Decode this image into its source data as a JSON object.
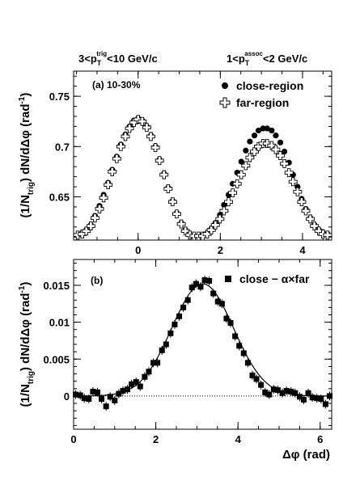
{
  "header": {
    "left": "3<p",
    "left_sub": "T",
    "left_sup": "trig",
    "left_rest": "<10 GeV/c",
    "right": "1<p",
    "right_sub": "T",
    "right_sup": "assoc",
    "right_rest": "<2 GeV/c"
  },
  "chart_data": [
    {
      "type": "scatter",
      "panel_label": "(a)  10-30%",
      "ylabel": "(1/N",
      "ylabel_sub": "trig",
      "ylabel_rest": ") dN/dΔφ (rad",
      "ylabel_sup": "-1",
      "ylabel_close": ")",
      "xlim": [
        -1.57,
        4.71
      ],
      "ylim": [
        0.607,
        0.775
      ],
      "x_ticks": [
        0,
        2,
        4
      ],
      "x_tick_labels": [
        "0",
        "2",
        "4"
      ],
      "y_ticks": [
        0.65,
        0.7,
        0.75
      ],
      "y_tick_labels": [
        "0.65",
        "0.7",
        "0.75"
      ],
      "legend": {
        "placement": "top-right",
        "entries": [
          "close-region",
          "far-region"
        ]
      },
      "series": [
        {
          "name": "close-region",
          "marker": "filled-circle",
          "x": [
            -1.47,
            -1.36,
            -1.26,
            -1.15,
            -1.05,
            -0.94,
            -0.84,
            -0.73,
            -0.63,
            -0.52,
            -0.42,
            -0.31,
            -0.21,
            -0.1,
            0.0,
            0.1,
            0.21,
            0.31,
            0.42,
            0.52,
            0.63,
            0.73,
            0.84,
            0.94,
            1.05,
            1.15,
            1.26,
            1.36,
            1.47,
            1.57,
            1.68,
            1.78,
            1.88,
            1.99,
            2.09,
            2.2,
            2.3,
            2.41,
            2.51,
            2.62,
            2.72,
            2.83,
            2.93,
            3.04,
            3.14,
            3.25,
            3.35,
            3.46,
            3.56,
            3.67,
            3.77,
            3.88,
            3.98,
            4.08,
            4.19,
            4.29,
            4.4,
            4.5,
            4.61
          ],
          "y": [
            0.612,
            0.614,
            0.617,
            0.622,
            0.631,
            0.641,
            0.652,
            0.664,
            0.677,
            0.69,
            0.702,
            0.712,
            0.72,
            0.726,
            0.728,
            0.726,
            0.72,
            0.711,
            0.7,
            0.687,
            0.673,
            0.659,
            0.646,
            0.634,
            0.624,
            0.617,
            0.612,
            0.611,
            0.611,
            0.612,
            0.614,
            0.618,
            0.624,
            0.632,
            0.642,
            0.652,
            0.663,
            0.674,
            0.685,
            0.696,
            0.705,
            0.711,
            0.716,
            0.718,
            0.718,
            0.716,
            0.711,
            0.704,
            0.695,
            0.684,
            0.672,
            0.66,
            0.648,
            0.638,
            0.629,
            0.622,
            0.617,
            0.614,
            0.613
          ]
        },
        {
          "name": "far-region",
          "marker": "open-cross",
          "x": [
            -1.47,
            -1.36,
            -1.26,
            -1.15,
            -1.05,
            -0.94,
            -0.84,
            -0.73,
            -0.63,
            -0.52,
            -0.42,
            -0.31,
            -0.21,
            -0.1,
            0.0,
            0.1,
            0.21,
            0.31,
            0.42,
            0.52,
            0.63,
            0.73,
            0.84,
            0.94,
            1.05,
            1.15,
            1.26,
            1.36,
            1.47,
            1.57,
            1.68,
            1.78,
            1.88,
            1.99,
            2.09,
            2.2,
            2.3,
            2.41,
            2.51,
            2.62,
            2.72,
            2.83,
            2.93,
            3.04,
            3.14,
            3.25,
            3.35,
            3.46,
            3.56,
            3.67,
            3.77,
            3.88,
            3.98,
            4.08,
            4.19,
            4.29,
            4.4,
            4.5,
            4.61
          ],
          "y": [
            0.612,
            0.613,
            0.616,
            0.621,
            0.629,
            0.638,
            0.649,
            0.662,
            0.675,
            0.688,
            0.7,
            0.71,
            0.718,
            0.724,
            0.727,
            0.725,
            0.719,
            0.71,
            0.699,
            0.686,
            0.672,
            0.658,
            0.645,
            0.633,
            0.623,
            0.616,
            0.612,
            0.611,
            0.611,
            0.611,
            0.613,
            0.617,
            0.622,
            0.628,
            0.636,
            0.645,
            0.654,
            0.663,
            0.672,
            0.681,
            0.689,
            0.695,
            0.7,
            0.703,
            0.703,
            0.701,
            0.697,
            0.691,
            0.683,
            0.674,
            0.665,
            0.655,
            0.645,
            0.636,
            0.628,
            0.621,
            0.616,
            0.613,
            0.612
          ]
        }
      ]
    },
    {
      "type": "scatter",
      "panel_label": "(b)",
      "ylabel": "(1/N",
      "ylabel_sub": "trig",
      "ylabel_rest": ") dN/dΔφ (rad",
      "ylabel_sup": "-1",
      "ylabel_close": ")",
      "xlabel": "Δφ (rad)",
      "xlim": [
        0,
        6.28
      ],
      "ylim": [
        -0.0045,
        0.0185
      ],
      "x_ticks": [
        0,
        2,
        4,
        6
      ],
      "x_tick_labels": [
        "0",
        "2",
        "4",
        "6"
      ],
      "y_ticks": [
        0,
        0.005,
        0.01,
        0.015
      ],
      "y_tick_labels": [
        "0",
        "0.005",
        "0.01",
        "0.015"
      ],
      "legend": {
        "placement": "top-right",
        "entries": [
          "close − α×far"
        ]
      },
      "zero_line": "dotted",
      "fit_curve": "gaussian",
      "fit": {
        "center": 3.14,
        "sigma": 0.75,
        "amplitude": 0.0152
      },
      "series": [
        {
          "name": "close − α×far",
          "marker": "filled-square",
          "x": [
            0.05,
            0.16,
            0.26,
            0.37,
            0.47,
            0.58,
            0.68,
            0.79,
            0.89,
            1.0,
            1.1,
            1.2,
            1.31,
            1.41,
            1.52,
            1.62,
            1.73,
            1.83,
            1.94,
            2.04,
            2.15,
            2.25,
            2.36,
            2.46,
            2.57,
            2.67,
            2.78,
            2.88,
            2.98,
            3.09,
            3.19,
            3.3,
            3.4,
            3.51,
            3.61,
            3.72,
            3.82,
            3.93,
            4.03,
            4.14,
            4.24,
            4.35,
            4.45,
            4.56,
            4.66,
            4.76,
            4.87,
            4.97,
            5.08,
            5.18,
            5.29,
            5.39,
            5.5,
            5.6,
            5.71,
            5.81,
            5.92,
            6.02,
            6.13,
            6.23
          ],
          "y": [
            0.0002,
            0.0001,
            -0.0003,
            -0.0004,
            0.0006,
            0.0005,
            -0.0004,
            -0.0014,
            -0.0001,
            -0.0006,
            0.0003,
            0.0007,
            0.0009,
            0.0016,
            0.0019,
            0.0013,
            0.0026,
            0.0033,
            0.0045,
            0.0045,
            0.0062,
            0.007,
            0.0085,
            0.0097,
            0.0108,
            0.012,
            0.013,
            0.0147,
            0.0152,
            0.0148,
            0.0157,
            0.0156,
            0.0139,
            0.0128,
            0.0125,
            0.0105,
            0.0099,
            0.0081,
            0.0068,
            0.0058,
            0.0045,
            0.0028,
            0.0023,
            0.0015,
            0.0005,
            0.0002,
            0.0009,
            0.0008,
            0.0004,
            0.0007,
            0.0006,
            0.0004,
            -0.0001,
            -0.0005,
            0.0004,
            -0.0002,
            -0.0003,
            -0.0004,
            -0.0011,
            0.0
          ],
          "err": [
            0.0006,
            0.0006,
            0.0006,
            0.0006,
            0.0006,
            0.0006,
            0.0006,
            0.0006,
            0.0006,
            0.0006,
            0.0006,
            0.0006,
            0.0006,
            0.0006,
            0.0006,
            0.0006,
            0.0006,
            0.0006,
            0.0006,
            0.0006,
            0.0006,
            0.0006,
            0.0006,
            0.0006,
            0.0006,
            0.0006,
            0.0006,
            0.0006,
            0.0006,
            0.0006,
            0.0006,
            0.0006,
            0.0006,
            0.0006,
            0.0006,
            0.0006,
            0.0006,
            0.0006,
            0.0006,
            0.0006,
            0.0006,
            0.0006,
            0.0006,
            0.0006,
            0.0006,
            0.0006,
            0.0006,
            0.0006,
            0.0006,
            0.0006,
            0.0006,
            0.0006,
            0.0006,
            0.0006,
            0.0006,
            0.0006,
            0.0006,
            0.0006,
            0.0006,
            0.0006
          ]
        }
      ]
    }
  ]
}
